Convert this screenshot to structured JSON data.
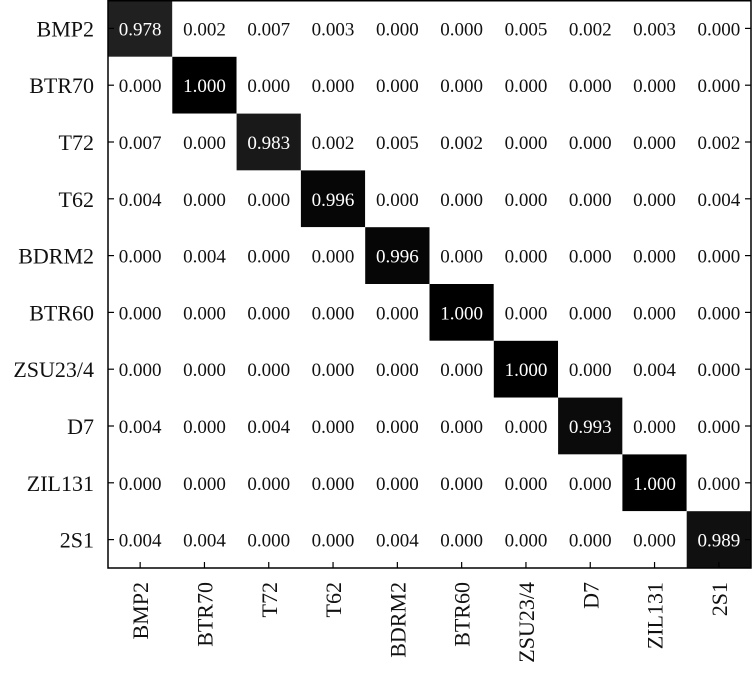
{
  "chart_data": {
    "type": "heatmap",
    "rows": [
      "BMP2",
      "BTR70",
      "T72",
      "T62",
      "BDRM2",
      "BTR60",
      "ZSU23/4",
      "D7",
      "ZIL131",
      "2S1"
    ],
    "columns": [
      "BMP2",
      "BTR70",
      "T72",
      "T62",
      "BDRM2",
      "BTR60",
      "ZSU23/4",
      "D7",
      "ZIL131",
      "2S1"
    ],
    "values": [
      [
        "0.978",
        "0.002",
        "0.007",
        "0.003",
        "0.000",
        "0.000",
        "0.005",
        "0.002",
        "0.003",
        "0.000"
      ],
      [
        "0.000",
        "1.000",
        "0.000",
        "0.000",
        "0.000",
        "0.000",
        "0.000",
        "0.000",
        "0.000",
        "0.000"
      ],
      [
        "0.007",
        "0.000",
        "0.983",
        "0.002",
        "0.005",
        "0.002",
        "0.000",
        "0.000",
        "0.000",
        "0.002"
      ],
      [
        "0.004",
        "0.000",
        "0.000",
        "0.996",
        "0.000",
        "0.000",
        "0.000",
        "0.000",
        "0.000",
        "0.004"
      ],
      [
        "0.000",
        "0.004",
        "0.000",
        "0.000",
        "0.996",
        "0.000",
        "0.000",
        "0.000",
        "0.000",
        "0.000"
      ],
      [
        "0.000",
        "0.000",
        "0.000",
        "0.000",
        "0.000",
        "1.000",
        "0.000",
        "0.000",
        "0.000",
        "0.000"
      ],
      [
        "0.000",
        "0.000",
        "0.000",
        "0.000",
        "0.000",
        "0.000",
        "1.000",
        "0.000",
        "0.004",
        "0.000"
      ],
      [
        "0.004",
        "0.000",
        "0.004",
        "0.000",
        "0.000",
        "0.000",
        "0.000",
        "0.993",
        "0.000",
        "0.000"
      ],
      [
        "0.000",
        "0.000",
        "0.000",
        "0.000",
        "0.000",
        "0.000",
        "0.000",
        "0.000",
        "1.000",
        "0.000"
      ],
      [
        "0.004",
        "0.004",
        "0.000",
        "0.000",
        "0.004",
        "0.000",
        "0.000",
        "0.000",
        "0.000",
        "0.989"
      ]
    ],
    "value_range": [
      0,
      1
    ],
    "colormap": {
      "low": "#ffffff",
      "high": "#000000"
    },
    "grid": false,
    "title": "",
    "xlabel": "",
    "ylabel": ""
  }
}
